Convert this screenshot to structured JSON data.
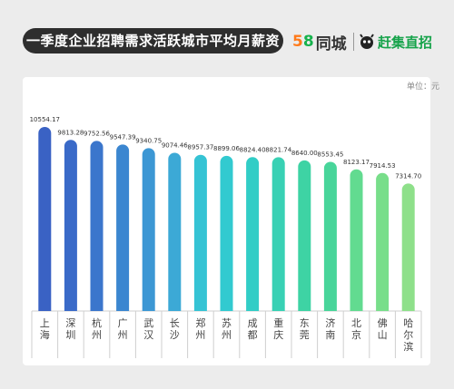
{
  "header": {
    "title": "一季度企业招聘需求活跃城市平均月薪资",
    "brand_58_5": "5",
    "brand_58_8": "8",
    "brand_58_text": "同城",
    "brand_gz_text": "赶集直招"
  },
  "unit_label": "单位：元",
  "chart_data": {
    "type": "bar",
    "title": "一季度企业招聘需求活跃城市平均月薪资",
    "unit": "单位：元",
    "categories": [
      "上海",
      "深圳",
      "杭州",
      "广州",
      "武汉",
      "长沙",
      "郑州",
      "苏州",
      "成都",
      "重庆",
      "东莞",
      "济南",
      "北京",
      "佛山",
      "哈尔滨"
    ],
    "values": [
      10554.17,
      9813.28,
      9752.56,
      9547.39,
      9340.75,
      9074.46,
      8957.37,
      8899.06,
      8824.4,
      8821.74,
      8640.0,
      8553.45,
      8123.17,
      7914.53,
      7314.7
    ],
    "value_labels": [
      "10554.17",
      "9813.28",
      "9752.56",
      "9547.39",
      "9340.75",
      "9074.46",
      "8957.37",
      "8899.06",
      "8824.40",
      "8821.74",
      "8640.00",
      "8553.45",
      "8123.17",
      "7914.53",
      "7314.70"
    ],
    "colors": [
      "#3a62c4",
      "#3a6ac8",
      "#3b76cc",
      "#3b86d0",
      "#3c97d4",
      "#3ca9d6",
      "#35c3d4",
      "#32cad0",
      "#31cdc6",
      "#38d1b4",
      "#3ed3a4",
      "#48d59a",
      "#62db90",
      "#78de8a",
      "#8ee08a"
    ],
    "axis_color": "#cfcfcf",
    "grid": true,
    "legend": "none"
  }
}
